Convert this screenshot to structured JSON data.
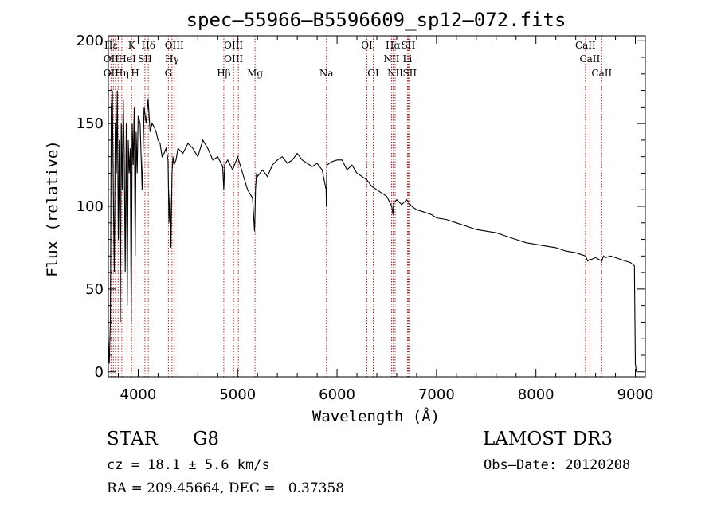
{
  "chart_data": {
    "type": "line",
    "title": "spec–55966–B5596609_sp12–072.fits",
    "xlabel": "Wavelength (Å)",
    "ylabel": "Flux (relative)",
    "xlim": [
      3700,
      9100
    ],
    "ylim": [
      -3,
      203
    ],
    "x_ticks": [
      4000,
      5000,
      6000,
      7000,
      8000,
      9000
    ],
    "y_ticks": [
      0,
      50,
      100,
      150,
      200
    ],
    "grid": false,
    "series": [
      {
        "name": "spectrum",
        "x": [
          3700,
          3710,
          3720,
          3730,
          3740,
          3750,
          3760,
          3770,
          3780,
          3790,
          3800,
          3810,
          3820,
          3830,
          3840,
          3850,
          3860,
          3870,
          3880,
          3890,
          3900,
          3910,
          3920,
          3930,
          3940,
          3950,
          3960,
          3970,
          3980,
          3990,
          4000,
          4020,
          4040,
          4060,
          4080,
          4100,
          4120,
          4140,
          4160,
          4180,
          4200,
          4220,
          4240,
          4260,
          4280,
          4300,
          4310,
          4320,
          4330,
          4340,
          4350,
          4360,
          4380,
          4400,
          4450,
          4500,
          4550,
          4600,
          4650,
          4700,
          4750,
          4800,
          4850,
          4861,
          4870,
          4900,
          4950,
          5000,
          5050,
          5100,
          5150,
          5170,
          5175,
          5180,
          5190,
          5200,
          5250,
          5300,
          5350,
          5400,
          5450,
          5500,
          5550,
          5600,
          5650,
          5700,
          5750,
          5800,
          5850,
          5890,
          5893,
          5896,
          5900,
          5950,
          6000,
          6050,
          6100,
          6150,
          6200,
          6250,
          6300,
          6350,
          6400,
          6450,
          6500,
          6550,
          6563,
          6570,
          6600,
          6650,
          6700,
          6750,
          6800,
          6850,
          6900,
          6950,
          7000,
          7100,
          7200,
          7300,
          7400,
          7500,
          7600,
          7700,
          7800,
          7900,
          8000,
          8100,
          8200,
          8300,
          8400,
          8450,
          8498,
          8520,
          8542,
          8560,
          8600,
          8662,
          8680,
          8700,
          8750,
          8800,
          8850,
          8900,
          8950,
          8990,
          9000,
          9010
        ],
        "y": [
          20,
          5,
          30,
          160,
          170,
          110,
          60,
          150,
          120,
          170,
          80,
          140,
          30,
          150,
          110,
          165,
          130,
          60,
          150,
          40,
          140,
          120,
          135,
          30,
          150,
          125,
          160,
          70,
          145,
          120,
          155,
          150,
          110,
          160,
          150,
          165,
          145,
          150,
          148,
          145,
          140,
          138,
          130,
          132,
          135,
          128,
          90,
          110,
          75,
          120,
          130,
          125,
          128,
          135,
          132,
          138,
          135,
          130,
          140,
          135,
          128,
          130,
          124,
          110,
          125,
          128,
          122,
          130,
          120,
          110,
          105,
          85,
          95,
          110,
          120,
          118,
          122,
          118,
          125,
          128,
          130,
          126,
          128,
          132,
          128,
          126,
          124,
          126,
          122,
          110,
          100,
          118,
          125,
          127,
          128,
          128,
          122,
          125,
          120,
          118,
          116,
          112,
          110,
          108,
          106,
          100,
          95,
          102,
          104,
          101,
          104,
          100,
          98,
          97,
          96,
          95,
          93,
          92,
          90,
          88,
          86,
          85,
          84,
          82,
          80,
          78,
          77,
          76,
          75,
          73,
          72,
          71,
          70,
          67,
          68,
          68,
          69,
          67,
          70,
          69,
          70,
          69,
          68,
          67,
          66,
          64,
          5,
          0
        ]
      }
    ],
    "line_markers": {
      "row1": [
        {
          "label": "Hε",
          "w": 3727
        },
        {
          "label": "K",
          "w": 3934
        },
        {
          "label": "Hδ",
          "w": 4102
        },
        {
          "label": "OIII",
          "w": 4363
        },
        {
          "label": "OIII",
          "w": 4959
        },
        {
          "label": "OI",
          "w": 6300
        },
        {
          "label": "Hα",
          "w": 6563
        },
        {
          "label": "SII",
          "w": 6717
        },
        {
          "label": "CaII",
          "w": 8498
        }
      ],
      "row2": [
        {
          "label": "OII",
          "w": 3727
        },
        {
          "label": "HeI",
          "w": 3889
        },
        {
          "label": "SII",
          "w": 4068
        },
        {
          "label": "Hγ",
          "w": 4340
        },
        {
          "label": "OIII",
          "w": 4959
        },
        {
          "label": "NII",
          "w": 6548
        },
        {
          "label": "Li",
          "w": 6708
        },
        {
          "label": "CaII",
          "w": 8542
        }
      ],
      "row3": [
        {
          "label": "OII",
          "w": 3727
        },
        {
          "label": "Hη",
          "w": 3835
        },
        {
          "label": "H",
          "w": 3969
        },
        {
          "label": "G",
          "w": 4304
        },
        {
          "label": "Hβ",
          "w": 4861
        },
        {
          "label": "Mg",
          "w": 5175
        },
        {
          "label": "Na",
          "w": 5893
        },
        {
          "label": "OI",
          "w": 6364
        },
        {
          "label": "NII",
          "w": 6584
        },
        {
          "label": "SII",
          "w": 6731
        },
        {
          "label": "CaII",
          "w": 8662
        }
      ],
      "dotted_lines": [
        3727,
        3750,
        3771,
        3798,
        3835,
        3889,
        3934,
        3969,
        4068,
        4102,
        4304,
        4340,
        4363,
        4861,
        4959,
        5007,
        5175,
        5893,
        6300,
        6364,
        6548,
        6563,
        6584,
        6708,
        6717,
        6731,
        8498,
        8542,
        8662
      ],
      "marker_color": "#b22222"
    }
  },
  "info": {
    "class_label": "STAR",
    "subclass": "G8",
    "survey": "LAMOST DR3",
    "cz": "cz = 18.1 ± 5.6 km/s",
    "obs_date": "Obs–Date: 20120208",
    "radec": "RA = 209.45664, DEC =   0.37358"
  }
}
